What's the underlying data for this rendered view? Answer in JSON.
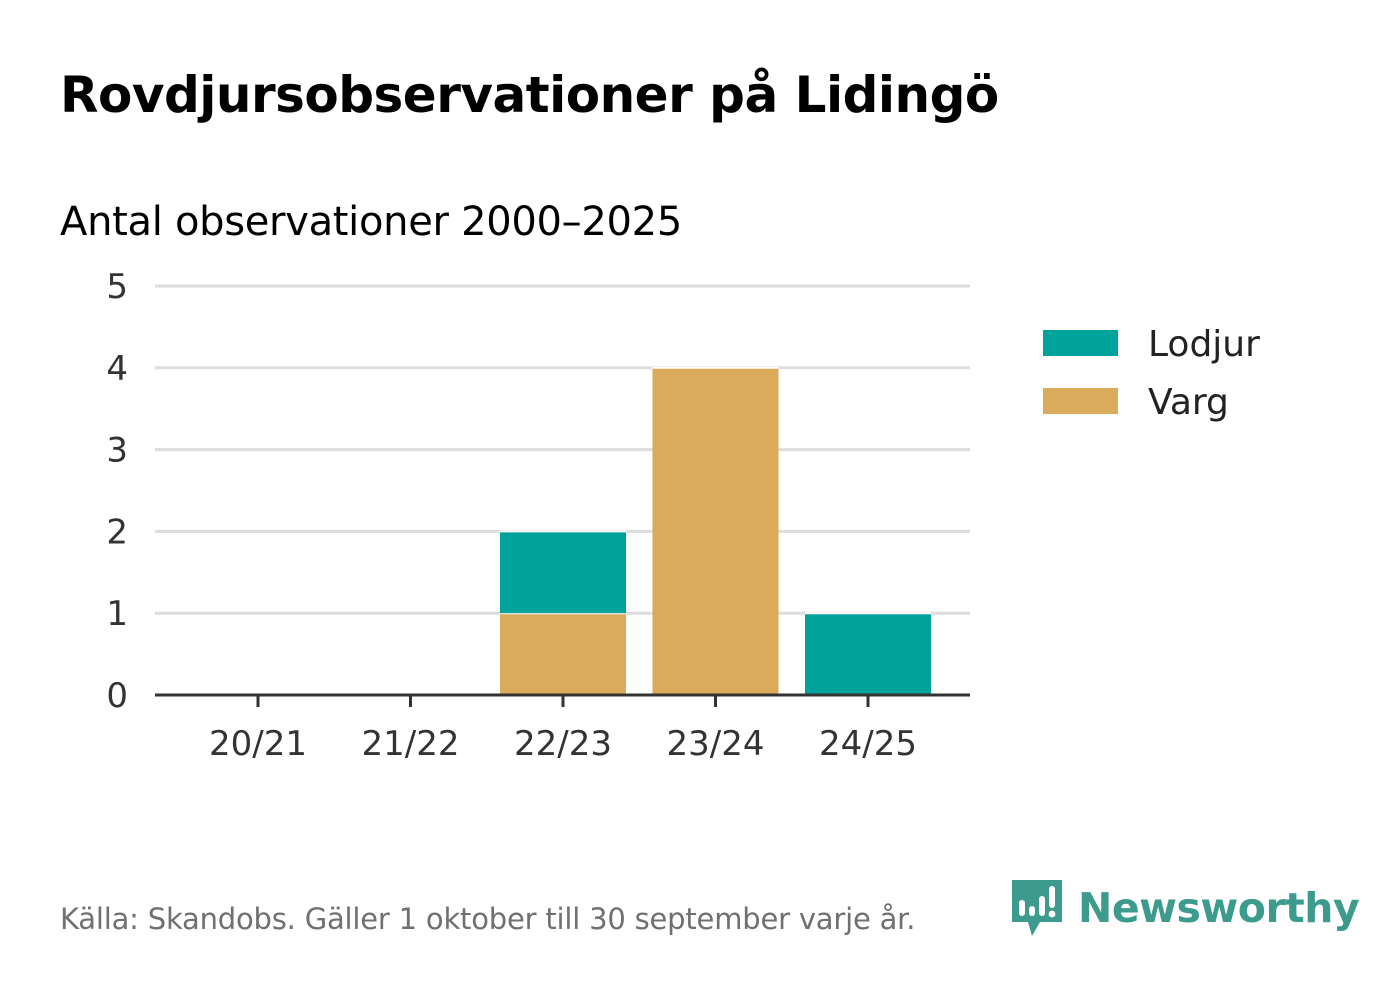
{
  "title": "Rovdjursobservationer på Lidingö",
  "subtitle": "Antal observationer 2000–2025",
  "source": "Källa: Skandobs. Gäller 1 oktober till 30 september varje år.",
  "brand": {
    "name": "Newsworthy",
    "icon": "newsworthy-logo-icon",
    "color": "#3d9b8e"
  },
  "chart_data": {
    "type": "bar",
    "stacked": true,
    "title": "Rovdjursobservationer på Lidingö",
    "subtitle": "Antal observationer 2000–2025",
    "xlabel": "",
    "ylabel": "",
    "ylim": [
      0,
      5
    ],
    "yticks": [
      0,
      1,
      2,
      3,
      4,
      5
    ],
    "grid": true,
    "legend_position": "right",
    "categories": [
      "20/21",
      "21/22",
      "22/23",
      "23/24",
      "24/25"
    ],
    "series": [
      {
        "name": "Varg",
        "color": "#d9ab5a",
        "values": [
          0,
          0,
          1,
          4,
          0
        ]
      },
      {
        "name": "Lodjur",
        "color": "#00a39a",
        "values": [
          0,
          0,
          1,
          0,
          1
        ]
      }
    ],
    "legend": [
      {
        "name": "Lodjur",
        "color": "#00a39a"
      },
      {
        "name": "Varg",
        "color": "#d9ab5a"
      }
    ]
  }
}
